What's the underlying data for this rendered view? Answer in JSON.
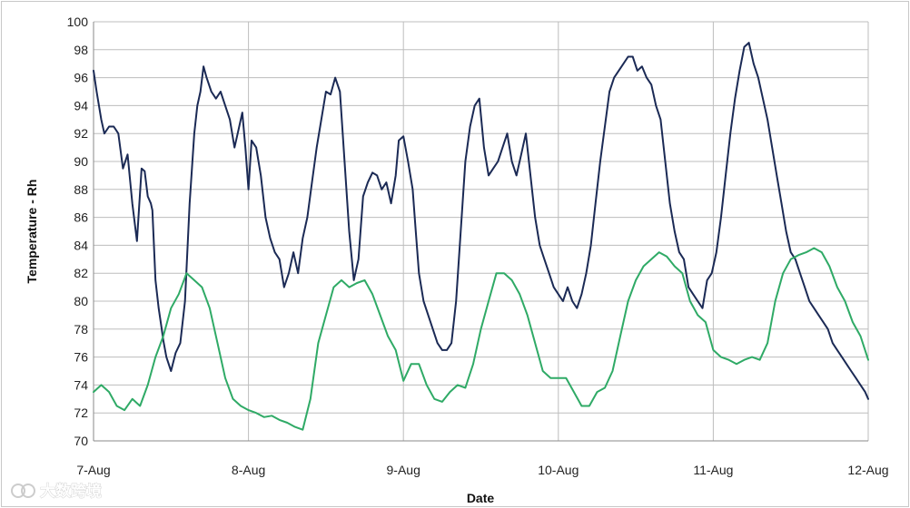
{
  "chart_data": {
    "type": "line",
    "title": "",
    "xlabel": "Date",
    "ylabel": "Temperature - Rh",
    "ylim": [
      70,
      100
    ],
    "yticks": [
      70,
      72,
      74,
      76,
      78,
      80,
      82,
      84,
      86,
      88,
      90,
      92,
      94,
      96,
      98,
      100
    ],
    "xlim": [
      0,
      5
    ],
    "xtick_labels": [
      "7-Aug",
      "8-Aug",
      "9-Aug",
      "10-Aug",
      "11-Aug",
      "12-Aug"
    ],
    "grid": true,
    "legend": "none",
    "series": [
      {
        "color": "#1b2a55",
        "x": [
          0.0,
          0.02,
          0.05,
          0.07,
          0.1,
          0.13,
          0.16,
          0.19,
          0.22,
          0.25,
          0.28,
          0.31,
          0.33,
          0.35,
          0.37,
          0.38,
          0.39,
          0.4,
          0.42,
          0.44,
          0.45,
          0.47,
          0.5,
          0.53,
          0.56,
          0.59,
          0.62,
          0.65,
          0.67,
          0.69,
          0.71,
          0.73,
          0.76,
          0.79,
          0.82,
          0.85,
          0.88,
          0.91,
          0.93,
          0.96,
          0.98,
          1.0,
          1.02,
          1.05,
          1.08,
          1.11,
          1.14,
          1.17,
          1.2,
          1.23,
          1.26,
          1.29,
          1.32,
          1.35,
          1.38,
          1.41,
          1.44,
          1.47,
          1.5,
          1.53,
          1.56,
          1.59,
          1.62,
          1.65,
          1.68,
          1.71,
          1.74,
          1.77,
          1.8,
          1.83,
          1.86,
          1.89,
          1.92,
          1.95,
          1.97,
          2.0,
          2.03,
          2.06,
          2.08,
          2.1,
          2.13,
          2.16,
          2.19,
          2.22,
          2.25,
          2.28,
          2.31,
          2.34,
          2.37,
          2.4,
          2.43,
          2.46,
          2.49,
          2.52,
          2.55,
          2.58,
          2.61,
          2.64,
          2.67,
          2.7,
          2.73,
          2.76,
          2.79,
          2.82,
          2.85,
          2.88,
          2.91,
          2.94,
          2.97,
          3.0,
          3.03,
          3.06,
          3.09,
          3.12,
          3.15,
          3.18,
          3.21,
          3.24,
          3.27,
          3.3,
          3.33,
          3.36,
          3.39,
          3.42,
          3.45,
          3.48,
          3.51,
          3.54,
          3.57,
          3.6,
          3.63,
          3.66,
          3.69,
          3.72,
          3.75,
          3.78,
          3.81,
          3.84,
          3.87,
          3.9,
          3.93,
          3.96,
          3.99,
          4.02,
          4.05,
          4.08,
          4.11,
          4.14,
          4.17,
          4.2,
          4.23,
          4.26,
          4.29,
          4.32,
          4.35,
          4.38,
          4.41,
          4.44,
          4.47,
          4.5,
          4.53,
          4.56,
          4.59,
          4.62,
          4.65,
          4.68,
          4.71,
          4.74,
          4.77,
          4.8,
          4.83,
          4.86,
          4.89,
          4.92,
          4.95,
          4.98,
          5.0
        ],
        "values": [
          96.5,
          95.0,
          93.0,
          92.0,
          92.5,
          92.5,
          92.0,
          89.5,
          90.5,
          87.0,
          84.3,
          89.5,
          89.3,
          87.5,
          87.0,
          86.5,
          84.0,
          81.5,
          79.5,
          78.0,
          77.2,
          76.0,
          75.0,
          76.3,
          77.0,
          80.0,
          87.0,
          92.0,
          94.0,
          95.0,
          96.8,
          96.0,
          95.0,
          94.5,
          95.0,
          94.0,
          93.0,
          91.0,
          92.0,
          93.5,
          91.0,
          88.0,
          91.5,
          91.0,
          89.0,
          86.0,
          84.5,
          83.5,
          83.0,
          81.0,
          82.0,
          83.5,
          82.0,
          84.5,
          86.0,
          88.5,
          91.0,
          93.0,
          95.0,
          94.8,
          96.0,
          95.0,
          90.0,
          85.0,
          81.5,
          83.0,
          87.5,
          88.5,
          89.2,
          89.0,
          88.0,
          88.5,
          87.0,
          89.0,
          91.5,
          91.8,
          90.0,
          88.0,
          85.0,
          82.0,
          80.0,
          79.0,
          78.0,
          77.0,
          76.5,
          76.5,
          77.0,
          80.0,
          85.0,
          90.0,
          92.5,
          94.0,
          94.5,
          91.0,
          89.0,
          89.5,
          90.0,
          91.0,
          92.0,
          90.0,
          89.0,
          90.5,
          92.0,
          89.0,
          86.0,
          84.0,
          83.0,
          82.0,
          81.0,
          80.5,
          80.0,
          81.0,
          80.0,
          79.5,
          80.5,
          82.0,
          84.0,
          87.0,
          90.0,
          92.5,
          95.0,
          96.0,
          96.5,
          97.0,
          97.5,
          97.5,
          96.5,
          96.8,
          96.0,
          95.5,
          94.0,
          93.0,
          90.0,
          87.0,
          85.0,
          83.5,
          83.0,
          81.0,
          80.5,
          80.0,
          79.5,
          81.5,
          82.0,
          83.5,
          86.0,
          89.0,
          92.0,
          94.5,
          96.5,
          98.2,
          98.5,
          97.0,
          96.0,
          94.5,
          93.0,
          91.0,
          89.0,
          87.0,
          85.0,
          83.5,
          83.0,
          82.0,
          81.0,
          80.0,
          79.5,
          79.0,
          78.5,
          78.0,
          77.0,
          76.5,
          76.0,
          75.5,
          75.0,
          74.5,
          74.0,
          73.5,
          73.0
        ]
      },
      {
        "color": "#2faa66",
        "x": [
          0.0,
          0.05,
          0.1,
          0.15,
          0.2,
          0.25,
          0.3,
          0.35,
          0.4,
          0.45,
          0.5,
          0.55,
          0.6,
          0.65,
          0.7,
          0.75,
          0.8,
          0.85,
          0.9,
          0.95,
          1.0,
          1.05,
          1.1,
          1.15,
          1.2,
          1.25,
          1.3,
          1.35,
          1.4,
          1.45,
          1.5,
          1.55,
          1.6,
          1.65,
          1.7,
          1.75,
          1.8,
          1.85,
          1.9,
          1.95,
          2.0,
          2.05,
          2.1,
          2.15,
          2.2,
          2.25,
          2.3,
          2.35,
          2.4,
          2.45,
          2.5,
          2.55,
          2.6,
          2.65,
          2.7,
          2.75,
          2.8,
          2.85,
          2.9,
          2.95,
          3.0,
          3.05,
          3.1,
          3.15,
          3.2,
          3.25,
          3.3,
          3.35,
          3.4,
          3.45,
          3.5,
          3.55,
          3.6,
          3.65,
          3.7,
          3.75,
          3.8,
          3.85,
          3.9,
          3.95,
          4.0,
          4.05,
          4.1,
          4.15,
          4.2,
          4.25,
          4.3,
          4.35,
          4.4,
          4.45,
          4.5,
          4.55,
          4.6,
          4.65,
          4.7,
          4.75,
          4.8,
          4.85,
          4.9,
          4.95,
          5.0
        ],
        "values": [
          73.5,
          74.0,
          73.5,
          72.5,
          72.2,
          73.0,
          72.5,
          74.0,
          76.0,
          77.5,
          79.5,
          80.5,
          82.0,
          81.5,
          81.0,
          79.5,
          77.0,
          74.5,
          73.0,
          72.5,
          72.2,
          72.0,
          71.7,
          71.8,
          71.5,
          71.3,
          71.0,
          70.8,
          73.0,
          77.0,
          79.0,
          81.0,
          81.5,
          81.0,
          81.3,
          81.5,
          80.5,
          79.0,
          77.5,
          76.5,
          74.3,
          75.5,
          75.5,
          74.0,
          73.0,
          72.8,
          73.5,
          74.0,
          73.8,
          75.5,
          78.0,
          80.0,
          82.0,
          82.0,
          81.5,
          80.5,
          79.0,
          77.0,
          75.0,
          74.5,
          74.5,
          74.5,
          73.5,
          72.5,
          72.5,
          73.5,
          73.8,
          75.0,
          77.5,
          80.0,
          81.5,
          82.5,
          83.0,
          83.5,
          83.2,
          82.5,
          82.0,
          80.0,
          79.0,
          78.5,
          76.5,
          76.0,
          75.8,
          75.5,
          75.8,
          76.0,
          75.8,
          77.0,
          80.0,
          82.0,
          83.0,
          83.3,
          83.5,
          83.8,
          83.5,
          82.5,
          81.0,
          80.0,
          78.5,
          77.5,
          75.8
        ]
      }
    ]
  },
  "watermark": {
    "text": "大数跨境"
  }
}
